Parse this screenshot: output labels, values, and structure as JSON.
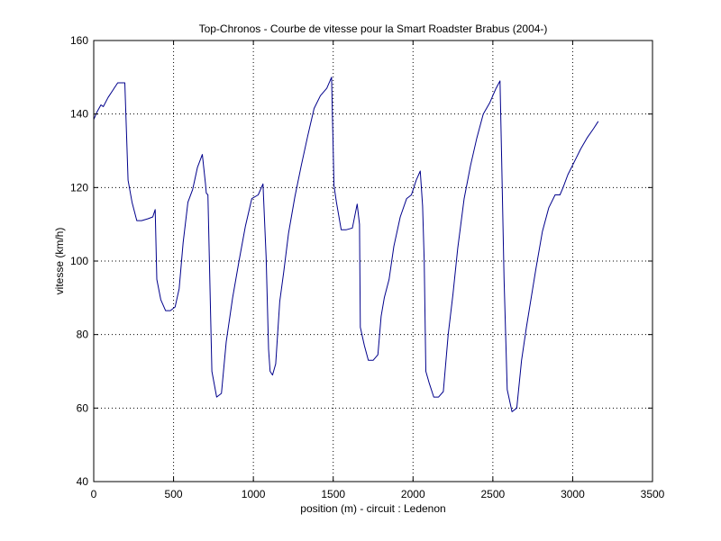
{
  "chart_data": {
    "type": "line",
    "title": "Top-Chronos - Courbe de vitesse pour la Smart Roadster Brabus (2004-)",
    "xlabel": "position (m) - circuit : Ledenon",
    "ylabel": "vitesse (km/h)",
    "xlim": [
      0,
      3500
    ],
    "ylim": [
      40,
      160
    ],
    "xticks": [
      0,
      500,
      1000,
      1500,
      2000,
      2500,
      3000,
      3500
    ],
    "yticks": [
      40,
      60,
      80,
      100,
      120,
      140,
      160
    ],
    "grid": true,
    "line_color": "#00008b",
    "series": [
      {
        "x": [
          0,
          20,
          45,
          60,
          90,
          120,
          150,
          175,
          195,
          215,
          240,
          270,
          300,
          340,
          370,
          385,
          395,
          420,
          450,
          480,
          510,
          535,
          560,
          590,
          620,
          650,
          680,
          700,
          705,
          715,
          740,
          770,
          800,
          830,
          870,
          910,
          950,
          990,
          1030,
          1060,
          1080,
          1095,
          1105,
          1120,
          1140,
          1165,
          1190,
          1220,
          1260,
          1300,
          1340,
          1380,
          1420,
          1460,
          1490,
          1505,
          1520,
          1550,
          1580,
          1620,
          1650,
          1665,
          1670,
          1695,
          1720,
          1750,
          1780,
          1800,
          1820,
          1850,
          1880,
          1920,
          1960,
          1990,
          2020,
          2045,
          2060,
          2070,
          2080,
          2100,
          2130,
          2160,
          2190,
          2220,
          2250,
          2280,
          2320,
          2360,
          2400,
          2440,
          2480,
          2520,
          2545,
          2555,
          2570,
          2590,
          2620,
          2650,
          2680,
          2710,
          2740,
          2770,
          2810,
          2850,
          2890,
          2920,
          2940,
          2970,
          3010,
          3050,
          3090,
          3130,
          3160
        ],
        "y": [
          138.5,
          140.5,
          142.5,
          142.0,
          144.5,
          146.5,
          148.5,
          148.5,
          148.5,
          122.0,
          116.0,
          111.0,
          111.0,
          111.5,
          112.0,
          114.0,
          95.0,
          89.5,
          86.5,
          86.5,
          87.5,
          92.5,
          105.0,
          116.0,
          119.5,
          125.5,
          129.0,
          121.0,
          118.5,
          118.0,
          70.0,
          63.0,
          64.0,
          78.0,
          90.0,
          100.0,
          109.5,
          117.0,
          118.0,
          121.0,
          101.0,
          76.0,
          70.0,
          69.0,
          72.0,
          89.0,
          97.0,
          107.5,
          117.5,
          126.0,
          134.0,
          141.5,
          145.0,
          147.0,
          150.0,
          120.5,
          116.0,
          108.5,
          108.5,
          109.0,
          115.5,
          110.0,
          82.0,
          77.0,
          73.0,
          73.0,
          74.5,
          85.0,
          90.0,
          95.0,
          104.0,
          112.0,
          117.0,
          118.0,
          122.0,
          124.5,
          115.0,
          100.0,
          70.0,
          67.0,
          63.0,
          63.0,
          64.5,
          80.0,
          91.0,
          103.5,
          117.0,
          126.0,
          133.5,
          140.0,
          143.0,
          147.0,
          149.0,
          128.0,
          95.0,
          65.0,
          59.0,
          60.0,
          73.0,
          82.0,
          90.0,
          98.0,
          108.0,
          114.5,
          118.0,
          118.0,
          120.0,
          123.5,
          127.0,
          130.5,
          133.5,
          136.0,
          138.0
        ]
      }
    ]
  }
}
